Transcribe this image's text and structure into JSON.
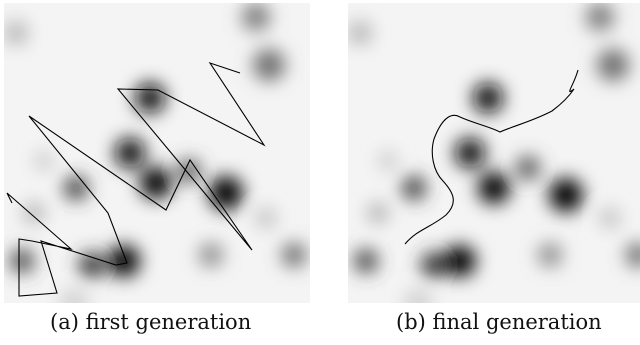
{
  "figure": {
    "panels": [
      {
        "caption": "(a) first generation",
        "description_kind": "blurred obstacle density map with a jagged path"
      },
      {
        "caption": "(b) final generation",
        "description_kind": "blurred obstacle density map with a smooth path"
      }
    ],
    "colors": {
      "background": "#f4f4f4",
      "obstacle": "#000000",
      "path": "#000000"
    }
  }
}
